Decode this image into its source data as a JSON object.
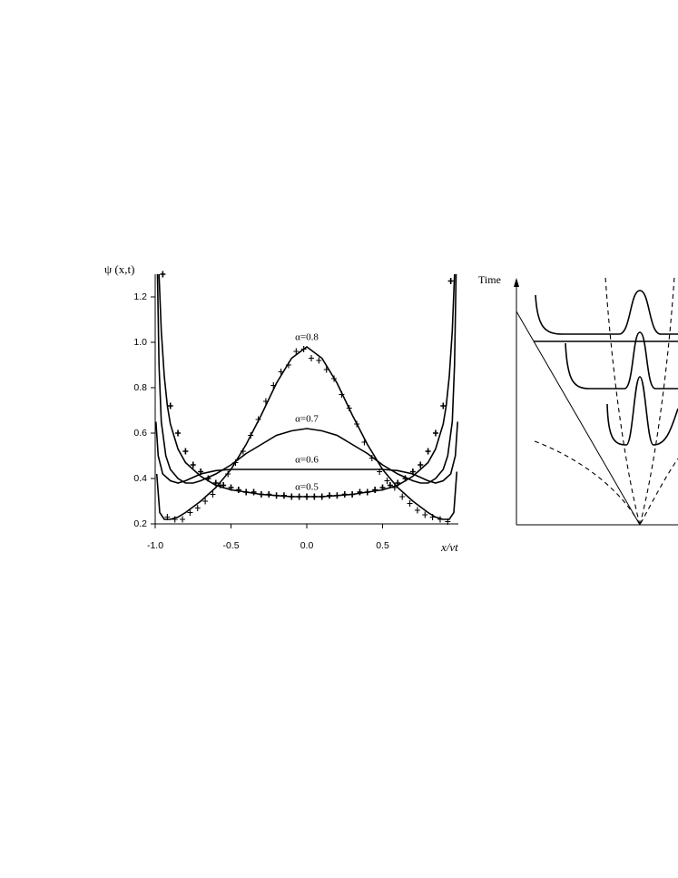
{
  "chart_data": {
    "type": "line",
    "y_label": "ψ (x,t)",
    "x_label": "x/vt",
    "xlim": [
      -1.0,
      1.0
    ],
    "ylim": [
      0.2,
      1.3
    ],
    "xticks": [
      {
        "value": -1.0,
        "label": "-1.0"
      },
      -0.5,
      {
        "value": 0.0,
        "label": "0.0"
      },
      0.5
    ],
    "yticks": [
      0.2,
      0.4,
      0.6,
      0.8,
      {
        "value": 1.0,
        "label": "1.0"
      },
      1.2
    ],
    "series": [
      {
        "name": "α=0.8",
        "color": "#000000",
        "x": [
          -0.99,
          -0.97,
          -0.94,
          -0.9,
          -0.85,
          -0.8,
          -0.7,
          -0.6,
          -0.5,
          -0.4,
          -0.3,
          -0.2,
          -0.1,
          0,
          0.1,
          0.2,
          0.3,
          0.4,
          0.5,
          0.6,
          0.7,
          0.8,
          0.85,
          0.9,
          0.94,
          0.97,
          0.99
        ],
        "values": [
          0.42,
          0.25,
          0.22,
          0.22,
          0.23,
          0.25,
          0.3,
          0.36,
          0.44,
          0.55,
          0.68,
          0.82,
          0.93,
          0.98,
          0.93,
          0.82,
          0.68,
          0.55,
          0.44,
          0.36,
          0.3,
          0.25,
          0.23,
          0.22,
          0.22,
          0.25,
          0.43
        ]
      },
      {
        "name": "α=0.7",
        "color": "#000000",
        "x": [
          -0.985,
          -0.975,
          -0.96,
          -0.93,
          -0.9,
          -0.85,
          -0.8,
          -0.75,
          -0.7,
          -0.6,
          -0.5,
          -0.4,
          -0.3,
          -0.2,
          -0.1,
          0,
          0.1,
          0.2,
          0.3,
          0.4,
          0.5,
          0.6,
          0.7,
          0.75,
          0.8,
          0.85,
          0.9,
          0.93,
          0.96,
          0.975,
          0.985
        ],
        "values": [
          1.3,
          0.9,
          0.65,
          0.5,
          0.44,
          0.4,
          0.38,
          0.38,
          0.39,
          0.42,
          0.46,
          0.51,
          0.55,
          0.59,
          0.61,
          0.62,
          0.61,
          0.59,
          0.55,
          0.51,
          0.46,
          0.42,
          0.39,
          0.38,
          0.38,
          0.4,
          0.44,
          0.5,
          0.65,
          0.9,
          1.3
        ]
      },
      {
        "name": "α=0.6",
        "color": "#000000",
        "x": [
          -0.995,
          -0.98,
          -0.95,
          -0.9,
          -0.85,
          -0.8,
          -0.7,
          -0.6,
          -0.5,
          0,
          0.5,
          0.6,
          0.7,
          0.8,
          0.85,
          0.9,
          0.95,
          0.98,
          0.995
        ],
        "values": [
          0.65,
          0.5,
          0.42,
          0.39,
          0.38,
          0.39,
          0.42,
          0.435,
          0.44,
          0.44,
          0.44,
          0.435,
          0.42,
          0.39,
          0.38,
          0.39,
          0.42,
          0.5,
          0.65
        ]
      },
      {
        "name": "α=0.5",
        "color": "#000000",
        "x": [
          -0.975,
          -0.96,
          -0.94,
          -0.92,
          -0.9,
          -0.85,
          -0.8,
          -0.7,
          -0.6,
          -0.5,
          -0.4,
          -0.3,
          -0.2,
          -0.1,
          0,
          0.1,
          0.2,
          0.3,
          0.4,
          0.5,
          0.6,
          0.7,
          0.8,
          0.85,
          0.9,
          0.92,
          0.94,
          0.96,
          0.975
        ],
        "values": [
          1.3,
          1.05,
          0.85,
          0.72,
          0.64,
          0.53,
          0.47,
          0.41,
          0.37,
          0.35,
          0.34,
          0.33,
          0.325,
          0.32,
          0.32,
          0.32,
          0.325,
          0.33,
          0.34,
          0.35,
          0.37,
          0.41,
          0.47,
          0.53,
          0.64,
          0.72,
          0.85,
          1.05,
          1.3
        ]
      }
    ],
    "points": [
      {
        "color": "#000000",
        "x": [
          -0.92,
          -0.87,
          -0.82,
          -0.77,
          -0.72,
          -0.67,
          -0.62,
          -0.57,
          -0.52,
          -0.47,
          -0.42,
          -0.37,
          -0.32,
          -0.27,
          -0.22,
          -0.17,
          -0.12,
          -0.07,
          -0.02,
          0.03,
          0.08,
          0.13,
          0.18,
          0.23,
          0.28,
          0.33,
          0.38,
          0.43,
          0.48,
          0.53,
          0.58,
          0.63,
          0.68,
          0.73,
          0.78,
          0.83,
          0.88,
          0.93
        ],
        "values": [
          0.23,
          0.22,
          0.22,
          0.25,
          0.27,
          0.3,
          0.33,
          0.37,
          0.42,
          0.47,
          0.52,
          0.59,
          0.66,
          0.74,
          0.81,
          0.87,
          0.9,
          0.96,
          0.97,
          0.93,
          0.92,
          0.88,
          0.84,
          0.77,
          0.71,
          0.64,
          0.56,
          0.49,
          0.43,
          0.39,
          0.36,
          0.32,
          0.29,
          0.26,
          0.24,
          0.23,
          0.22,
          0.21
        ]
      },
      {
        "color": "#000000",
        "x": [
          -0.95,
          -0.9,
          -0.85,
          -0.8,
          -0.75,
          -0.7,
          -0.65,
          -0.6,
          -0.55,
          -0.5,
          -0.45,
          -0.4,
          -0.35,
          -0.3,
          -0.25,
          -0.2,
          -0.15,
          -0.1,
          -0.05,
          0,
          0.05,
          0.1,
          0.15,
          0.2,
          0.25,
          0.3,
          0.35,
          0.4,
          0.45,
          0.5,
          0.55,
          0.6,
          0.65,
          0.7,
          0.75,
          0.8,
          0.85,
          0.9,
          0.95
        ],
        "values": [
          1.3,
          0.72,
          0.6,
          0.52,
          0.46,
          0.43,
          0.4,
          0.38,
          0.37,
          0.36,
          0.35,
          0.34,
          0.34,
          0.33,
          0.33,
          0.325,
          0.325,
          0.32,
          0.32,
          0.32,
          0.32,
          0.32,
          0.325,
          0.325,
          0.33,
          0.33,
          0.34,
          0.34,
          0.35,
          0.36,
          0.37,
          0.38,
          0.4,
          0.43,
          0.46,
          0.52,
          0.6,
          0.72,
          1.27
        ]
      }
    ]
  },
  "diagram": {
    "time_label": "Time"
  }
}
